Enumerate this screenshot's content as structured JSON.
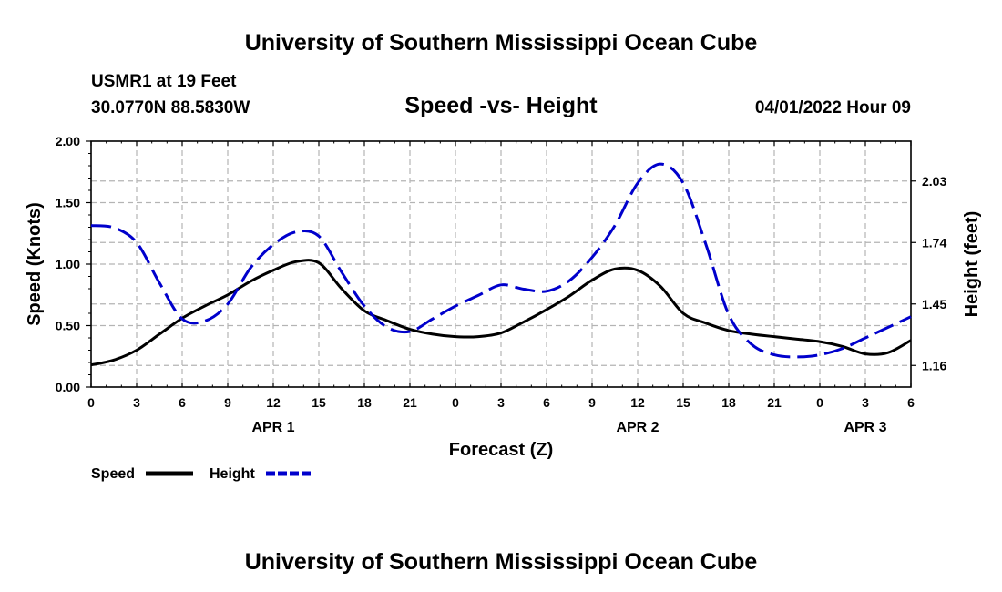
{
  "header": {
    "title": "University of Southern Mississippi Ocean Cube",
    "station": "USMR1 at 19 Feet",
    "location": "30.0770N  88.5830W",
    "chart_title": "Speed -vs- Height",
    "timestamp": "04/01/2022 Hour 09"
  },
  "footer": {
    "title": "University of Southern Mississippi Ocean Cube"
  },
  "colors": {
    "speed": "#000000",
    "height": "#0000cc",
    "grid": "#b4b4b4"
  },
  "chart_data": {
    "type": "line",
    "title": "Speed -vs- Height",
    "xlabel": "Forecast (Z)",
    "ylabel": "Speed (Knots)",
    "y2label": "Height (feet)",
    "x_tick_labels": [
      "0",
      "3",
      "6",
      "9",
      "12",
      "15",
      "18",
      "21",
      "0",
      "3",
      "6",
      "9",
      "12",
      "15",
      "18",
      "21",
      "0",
      "3",
      "6"
    ],
    "date_labels": [
      {
        "label": "APR 1",
        "hour_index": 12
      },
      {
        "label": "APR 2",
        "hour_index": 36
      },
      {
        "label": "APR 3",
        "hour_index": 51
      }
    ],
    "xlim": [
      0,
      54
    ],
    "ylim": [
      0,
      2
    ],
    "y_ticks": [
      0,
      0.5,
      1,
      1.5,
      2
    ],
    "y_tick_labels": [
      "0.00",
      "0.50",
      "1.00",
      "1.50",
      "2.00"
    ],
    "y2lim": [
      1.058,
      2.218
    ],
    "y2_ticks": [
      1.16,
      1.45,
      1.74,
      2.03
    ],
    "y2_tick_labels": [
      "1.16",
      "1.45",
      "1.74",
      "2.03"
    ],
    "grid": true,
    "legend_position": "bottom-left",
    "series": [
      {
        "name": "Speed",
        "axis": "left",
        "style": "solid",
        "x": [
          0,
          1.5,
          3,
          4.5,
          6,
          7.5,
          9,
          10.5,
          12,
          13.5,
          15,
          16.5,
          18,
          19.5,
          21,
          22.5,
          24,
          25.5,
          27,
          28.5,
          30,
          31.5,
          33,
          34.5,
          36,
          37.5,
          39,
          40.5,
          42,
          43.5,
          45,
          46.5,
          48,
          49.5,
          51,
          52.5,
          54
        ],
        "values": [
          0.18,
          0.22,
          0.3,
          0.43,
          0.56,
          0.66,
          0.75,
          0.86,
          0.95,
          1.02,
          1.01,
          0.8,
          0.62,
          0.54,
          0.47,
          0.43,
          0.41,
          0.41,
          0.44,
          0.53,
          0.63,
          0.74,
          0.87,
          0.96,
          0.95,
          0.82,
          0.6,
          0.52,
          0.46,
          0.43,
          0.41,
          0.39,
          0.37,
          0.33,
          0.27,
          0.28,
          0.38
        ]
      },
      {
        "name": "Height",
        "axis": "right",
        "style": "dashed",
        "x": [
          0,
          1.5,
          3,
          4.5,
          6,
          7.5,
          9,
          10.5,
          12,
          13.5,
          15,
          16.5,
          18,
          19.5,
          21,
          22.5,
          24,
          25.5,
          27,
          28.5,
          30,
          31.5,
          33,
          34.5,
          36,
          37.5,
          39,
          40.5,
          42,
          43.5,
          45,
          46.5,
          48,
          49.5,
          51,
          52.5,
          54
        ],
        "values": [
          1.82,
          1.81,
          1.74,
          1.55,
          1.38,
          1.37,
          1.45,
          1.62,
          1.73,
          1.79,
          1.77,
          1.6,
          1.44,
          1.34,
          1.32,
          1.38,
          1.44,
          1.49,
          1.54,
          1.52,
          1.51,
          1.56,
          1.67,
          1.82,
          2.02,
          2.11,
          2.02,
          1.73,
          1.4,
          1.26,
          1.21,
          1.2,
          1.21,
          1.24,
          1.29,
          1.34,
          1.39
        ]
      }
    ]
  }
}
